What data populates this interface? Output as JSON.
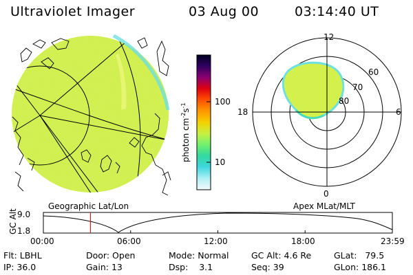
{
  "header": {
    "title": "Ultraviolet Imager",
    "date": "03 Aug 00",
    "time": "03:14:40 UT"
  },
  "colorbar": {
    "label": "photon cm",
    "label_sup1": "-2",
    "label_mid": "s",
    "label_sup2": "-1",
    "ticks": [
      {
        "label": "100",
        "value": 100
      },
      {
        "label": "10",
        "value": 10
      }
    ],
    "colors_top_to_bottom": [
      "#000020",
      "#300060",
      "#8c0070",
      "#e00010",
      "#ff5000",
      "#ff9800",
      "#f4d000",
      "#c8f040",
      "#70f070",
      "#30d8a0",
      "#40d8e0",
      "#b0f0f4",
      "#f4f8fc"
    ]
  },
  "left_map": {
    "label": "Geographic Lat/Lon",
    "fill_color": "#d4f04c"
  },
  "polar_plot": {
    "label": "Apex MLat/MLT",
    "mlt_labels": {
      "top": "12",
      "left": "18",
      "right": "6",
      "bottom": "0"
    },
    "lat_labels": [
      "60",
      "70",
      "80"
    ]
  },
  "altitude_plot": {
    "ylabel": "GC Alt",
    "y_ticks": [
      "9.0",
      "1.8"
    ],
    "x_ticks": [
      "00:00",
      "06:00",
      "12:00",
      "18:00",
      "23:59"
    ],
    "marker_hour": 3.24,
    "marker_color": "#d02020"
  },
  "info": {
    "filter_label": "Flt:",
    "filter_value": "LBHL",
    "ip_label": "IP:",
    "ip_value": "36.0",
    "door_label": "Door:",
    "door_value": "Open",
    "gain_label": "Gain:",
    "gain_value": "13",
    "mode_label": "Mode:",
    "mode_value": "Normal",
    "dsp_label": "Dsp:",
    "dsp_value": "3.1",
    "gcalt_label": "GC Alt:",
    "gcalt_value": "4.6 Re",
    "seq_label": "Seq:",
    "seq_value": "39",
    "glat_label": "GLat:",
    "glat_value": "79.5",
    "glon_label": "GLon:",
    "glon_value": "186.1"
  }
}
